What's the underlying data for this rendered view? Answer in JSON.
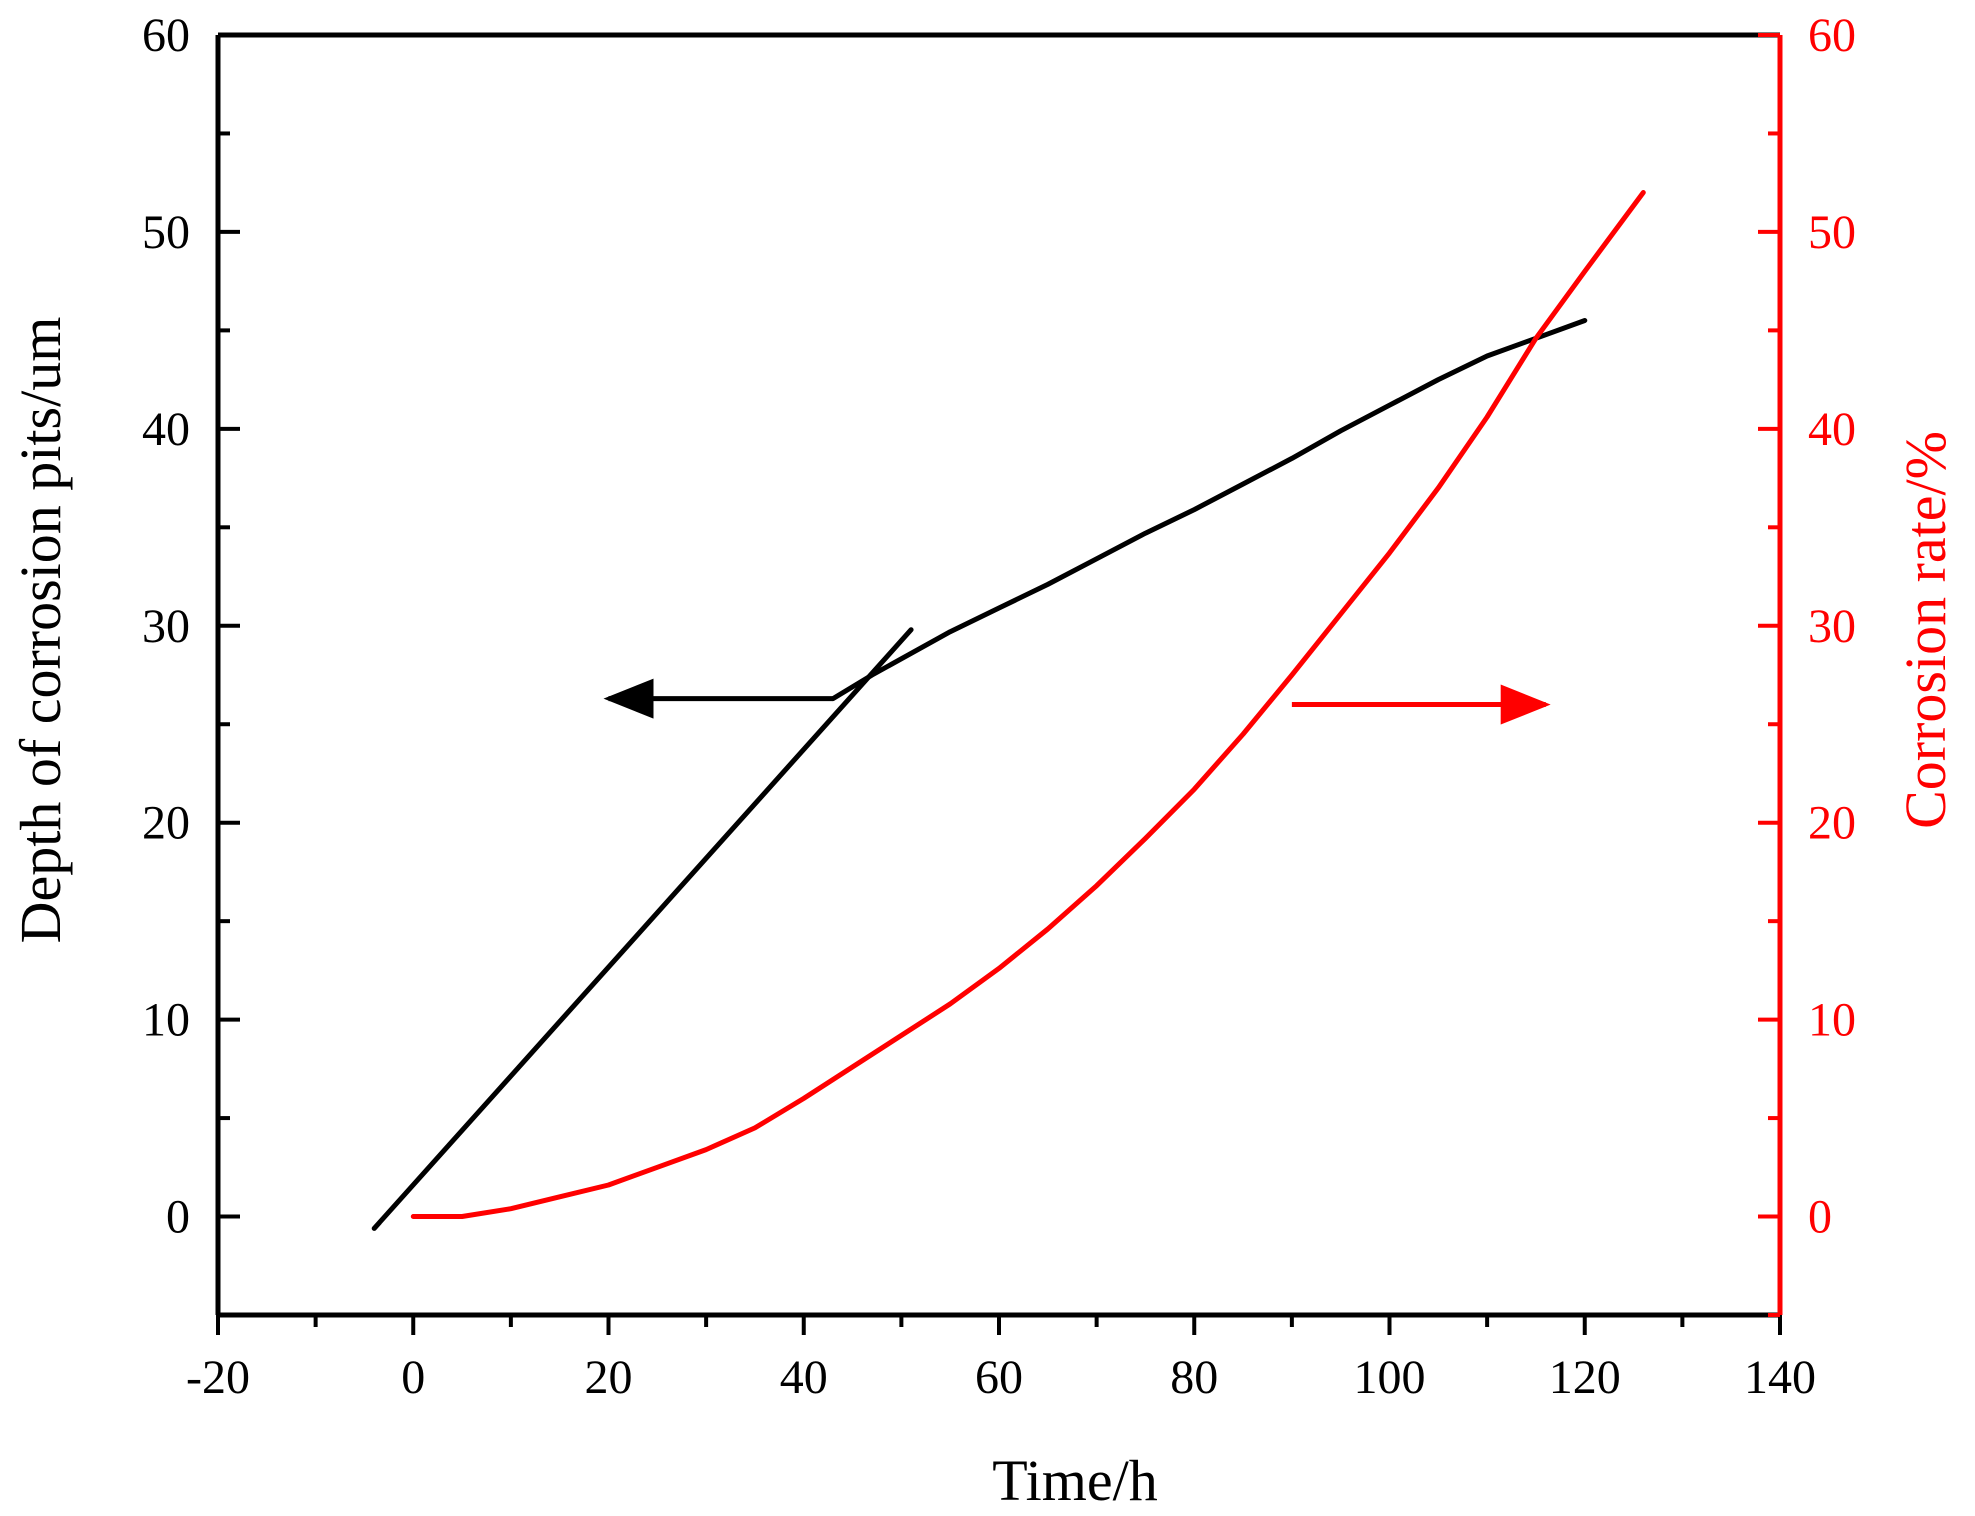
{
  "chart_data": {
    "type": "line",
    "title": "",
    "xlabel": "Time/h",
    "ylabel_left": "Depth of corrosion pits/um",
    "ylabel_right": "Corrosion rate/%",
    "xlim": [
      -20,
      140
    ],
    "ylim_left": [
      -5,
      60
    ],
    "ylim_right": [
      -5,
      60
    ],
    "x_ticks": [
      -20,
      0,
      20,
      40,
      60,
      80,
      100,
      120,
      140
    ],
    "y_ticks_left": [
      0,
      10,
      20,
      30,
      40,
      50,
      60
    ],
    "y_ticks_right": [
      0,
      10,
      20,
      30,
      40,
      50,
      60
    ],
    "grid": false,
    "colors": {
      "depth": "#000000",
      "rate": "#ff0000",
      "axis": "#000000",
      "right_axis": "#ff0000"
    },
    "series": [
      {
        "name": "Depth of corrosion pits",
        "axis": "left",
        "color": "#000000",
        "segments": [
          {
            "name": "early-fit",
            "x": [
              -4,
              51
            ],
            "y": [
              -0.6,
              29.8
            ]
          },
          {
            "name": "depth-data",
            "x": [
              43,
              47,
              55,
              60,
              65,
              70,
              75,
              80,
              85,
              90,
              95,
              100,
              105,
              110,
              115,
              120
            ],
            "y": [
              26.3,
              27.5,
              29.7,
              30.9,
              32.1,
              33.4,
              34.7,
              35.9,
              37.2,
              38.5,
              39.9,
              41.2,
              42.5,
              43.7,
              44.6,
              45.5
            ]
          }
        ]
      },
      {
        "name": "Corrosion rate",
        "axis": "right",
        "color": "#ff0000",
        "x": [
          0,
          5,
          10,
          15,
          20,
          25,
          30,
          35,
          40,
          45,
          50,
          55,
          60,
          65,
          70,
          75,
          80,
          85,
          90,
          95,
          100,
          105,
          110,
          115,
          120,
          126
        ],
        "y": [
          0,
          0,
          0.4,
          1.0,
          1.6,
          2.5,
          3.4,
          4.5,
          6.0,
          7.6,
          9.2,
          10.8,
          12.6,
          14.6,
          16.8,
          19.2,
          21.7,
          24.5,
          27.5,
          30.6,
          33.7,
          37.0,
          40.6,
          44.6,
          48.0,
          52.0
        ]
      }
    ],
    "annotations": [
      {
        "name": "left-arrow",
        "points_to": "left-axis",
        "color": "#000000",
        "from": [
          43,
          26.3
        ],
        "to": [
          20,
          26.3
        ]
      },
      {
        "name": "right-arrow",
        "points_to": "right-axis",
        "color": "#ff0000",
        "from": [
          90,
          26
        ],
        "to": [
          116,
          26
        ]
      }
    ]
  }
}
